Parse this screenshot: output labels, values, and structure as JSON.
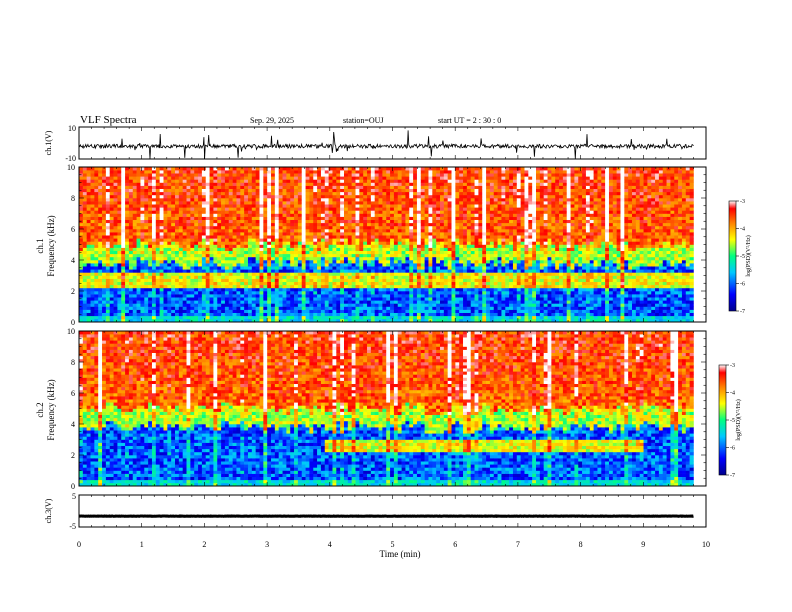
{
  "header": {
    "title": "VLF Spectra",
    "date": "Sep. 29, 2025",
    "station": "station=OUJ",
    "start": "start UT =  2 : 30 : 0"
  },
  "colors": {
    "spectrogram_colormap": [
      "#00008c",
      "#0000ff",
      "#00c8ff",
      "#00ff80",
      "#ffff00",
      "#ff8000",
      "#ff0000",
      "#ffffff"
    ],
    "trace": "#000000"
  },
  "chart_data": [
    {
      "type": "line",
      "panel": "ch1-waveform",
      "ylabel": "ch.1(V)",
      "yticks": [
        "10",
        "-10"
      ],
      "ylim": [
        -10,
        10
      ],
      "xlim": [
        0,
        10
      ],
      "baseline": -2,
      "noise_amplitude": 1.2
    },
    {
      "type": "heatmap",
      "panel": "ch1-spectrogram",
      "ylabel": "ch.1\nFrequency (kHz)",
      "yticks": [
        "0",
        "2",
        "4",
        "6",
        "8",
        "10"
      ],
      "ylim": [
        0,
        10
      ],
      "xlim": [
        0,
        9.8
      ],
      "segments": [
        {
          "t_start": 0.0,
          "t_end": 9.8,
          "low_band_top_khz": 5.0,
          "enhanced_band_khz": [
            2.2,
            3.2
          ]
        }
      ],
      "colorbar": {
        "label": "log(PSD)(V²/Hz)",
        "ticks": [
          "-3",
          "-4",
          "-5",
          "-6",
          "-7"
        ],
        "range": [
          -7,
          -3
        ]
      }
    },
    {
      "type": "heatmap",
      "panel": "ch2-spectrogram",
      "ylabel": "ch.2\nFrequency (kHz)",
      "yticks": [
        "0",
        "2",
        "4",
        "6",
        "8",
        "10"
      ],
      "ylim": [
        0,
        10
      ],
      "xlim": [
        0,
        9.8
      ],
      "segments": [
        {
          "t_start": 0.0,
          "t_end": 3.9,
          "low_band_top_khz": 5.0,
          "enhanced_band_khz": null
        },
        {
          "t_start": 3.9,
          "t_end": 9.0,
          "low_band_top_khz": 5.0,
          "enhanced_band_khz": [
            2.2,
            3.0
          ]
        },
        {
          "t_start": 9.0,
          "t_end": 9.8,
          "low_band_top_khz": 5.0,
          "enhanced_band_khz": null
        }
      ],
      "colorbar": {
        "label": "log(PSD)(V²/Hz)",
        "ticks": [
          "-3",
          "-4",
          "-5",
          "-6",
          "-7"
        ],
        "range": [
          -7,
          -3
        ]
      }
    },
    {
      "type": "line",
      "panel": "ch3-waveform",
      "ylabel": "ch.3(V)",
      "yticks": [
        "5",
        "-5"
      ],
      "ylim": [
        -5,
        5
      ],
      "xlim": [
        0,
        10
      ],
      "baseline": -1.6,
      "noise_amplitude": 0.05
    }
  ],
  "xaxis": {
    "label": "Time (min)",
    "ticks": [
      "0",
      "1",
      "2",
      "3",
      "4",
      "5",
      "6",
      "7",
      "8",
      "9",
      "10"
    ],
    "range": [
      0,
      10
    ]
  }
}
